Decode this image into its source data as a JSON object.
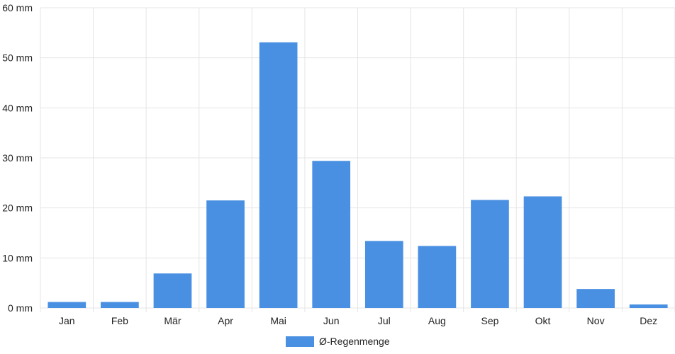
{
  "chart_data": {
    "type": "bar",
    "title": "",
    "xlabel": "",
    "ylabel": "",
    "categories": [
      "Jan",
      "Feb",
      "Mär",
      "Apr",
      "Mai",
      "Jun",
      "Jul",
      "Aug",
      "Sep",
      "Okt",
      "Nov",
      "Dez"
    ],
    "series": [
      {
        "name": "Ø-Regenmenge",
        "values": [
          1.2,
          1.2,
          6.9,
          21.5,
          53.1,
          29.4,
          13.4,
          12.4,
          21.6,
          22.3,
          3.8,
          0.7
        ],
        "color": "#4a90e2"
      }
    ],
    "ylim": [
      0,
      60
    ],
    "yticks": [
      0,
      10,
      20,
      30,
      40,
      50,
      60
    ],
    "ytick_labels": [
      "0 mm",
      "10 mm",
      "20 mm",
      "30 mm",
      "40 mm",
      "50 mm",
      "60 mm"
    ],
    "grid": true,
    "legend_position": "bottom-center",
    "colors": {
      "bar": "#4a90e2",
      "grid": "#e5e5e5",
      "text": "#222222"
    }
  }
}
